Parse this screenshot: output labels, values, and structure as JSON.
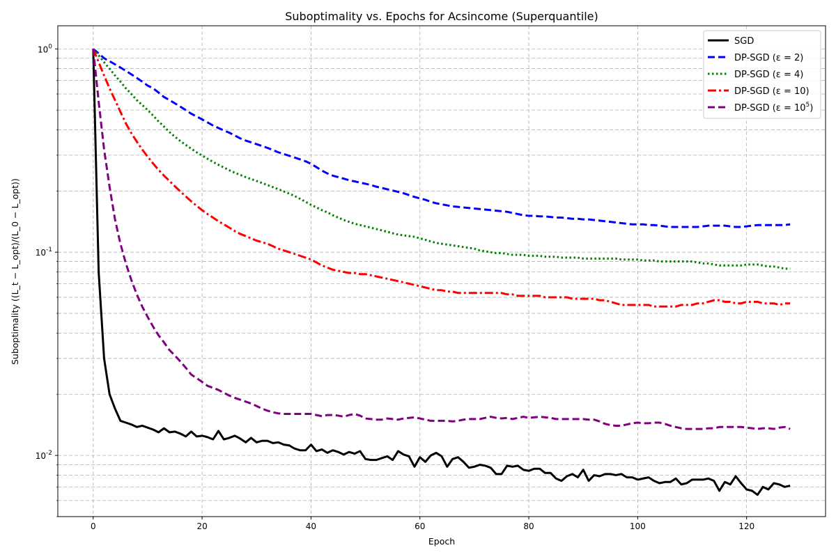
{
  "chart_data": {
    "type": "line",
    "title": "Suboptimality vs. Epochs for Acsincome (Superquantile)",
    "xlabel": "Epoch",
    "ylabel": "Suboptimality ((L_t − L_opt)/(L_0 − L_opt))",
    "xlim": [
      -6.5,
      134.5
    ],
    "ylim": [
      0.005,
      1.3
    ],
    "yscale": "log",
    "grid": true,
    "legend_position": "top-right",
    "x_ticks": [
      0,
      20,
      40,
      60,
      80,
      100,
      120
    ],
    "x_tick_labels": [
      "0",
      "20",
      "40",
      "60",
      "80",
      "100",
      "120"
    ],
    "y_ticks": [
      0.01,
      0.1,
      1
    ],
    "y_tick_labels": [
      "10^-2",
      "10^-1",
      "10^0"
    ],
    "x": [
      0,
      1,
      2,
      3,
      4,
      5,
      6,
      7,
      8,
      9,
      10,
      11,
      12,
      13,
      14,
      15,
      16,
      17,
      18,
      19,
      20,
      21,
      22,
      23,
      24,
      25,
      26,
      27,
      28,
      29,
      30,
      31,
      32,
      33,
      34,
      35,
      36,
      37,
      38,
      39,
      40,
      41,
      42,
      43,
      44,
      45,
      46,
      47,
      48,
      49,
      50,
      51,
      52,
      53,
      54,
      55,
      56,
      57,
      58,
      59,
      60,
      61,
      62,
      63,
      64,
      65,
      66,
      67,
      68,
      69,
      70,
      71,
      72,
      73,
      74,
      75,
      76,
      77,
      78,
      79,
      80,
      81,
      82,
      83,
      84,
      85,
      86,
      87,
      88,
      89,
      90,
      91,
      92,
      93,
      94,
      95,
      96,
      97,
      98,
      99,
      100,
      101,
      102,
      103,
      104,
      105,
      106,
      107,
      108,
      109,
      110,
      111,
      112,
      113,
      114,
      115,
      116,
      117,
      118,
      119,
      120,
      121,
      122,
      123,
      124,
      125,
      126,
      127,
      128
    ],
    "series": [
      {
        "name": "SGD",
        "color": "#000000",
        "style": "solid",
        "values": [
          1.0,
          0.08,
          0.03,
          0.02,
          0.017,
          0.0148,
          0.0145,
          0.0142,
          0.0138,
          0.014,
          0.0137,
          0.0134,
          0.013,
          0.0136,
          0.013,
          0.0131,
          0.0128,
          0.0124,
          0.0131,
          0.0124,
          0.0125,
          0.0123,
          0.012,
          0.0132,
          0.012,
          0.0122,
          0.0125,
          0.0121,
          0.0116,
          0.0122,
          0.0116,
          0.0118,
          0.0118,
          0.0115,
          0.0116,
          0.0113,
          0.0112,
          0.0108,
          0.0106,
          0.0106,
          0.0113,
          0.0105,
          0.0107,
          0.0103,
          0.0106,
          0.0104,
          0.0101,
          0.0104,
          0.0102,
          0.0105,
          0.0096,
          0.0095,
          0.0095,
          0.0097,
          0.0099,
          0.0095,
          0.0105,
          0.0101,
          0.0099,
          0.0088,
          0.0098,
          0.0093,
          0.01,
          0.0103,
          0.0099,
          0.0088,
          0.0096,
          0.0098,
          0.0093,
          0.0087,
          0.0088,
          0.009,
          0.0089,
          0.0087,
          0.0081,
          0.0081,
          0.0089,
          0.0088,
          0.0089,
          0.0085,
          0.0084,
          0.0086,
          0.0086,
          0.0082,
          0.0082,
          0.0077,
          0.0075,
          0.0079,
          0.0081,
          0.0078,
          0.0085,
          0.0075,
          0.008,
          0.0079,
          0.0081,
          0.0081,
          0.008,
          0.0081,
          0.0078,
          0.0078,
          0.0076,
          0.0077,
          0.0078,
          0.0075,
          0.0073,
          0.0074,
          0.0074,
          0.0077,
          0.0072,
          0.0073,
          0.0076,
          0.0076,
          0.0076,
          0.0077,
          0.0075,
          0.0067,
          0.0074,
          0.0072,
          0.0079,
          0.0073,
          0.0068,
          0.0067,
          0.0064,
          0.007,
          0.0068,
          0.0073,
          0.0072,
          0.007,
          0.0071
        ]
      },
      {
        "name": "DP-SGD (ε = 2)",
        "color": "#0000ff",
        "style": "dashed",
        "values": [
          1.0,
          0.95,
          0.9,
          0.87,
          0.84,
          0.81,
          0.78,
          0.75,
          0.72,
          0.69,
          0.66,
          0.64,
          0.61,
          0.58,
          0.56,
          0.54,
          0.52,
          0.5,
          0.48,
          0.465,
          0.45,
          0.435,
          0.42,
          0.408,
          0.397,
          0.387,
          0.375,
          0.363,
          0.354,
          0.347,
          0.34,
          0.333,
          0.326,
          0.318,
          0.31,
          0.304,
          0.298,
          0.292,
          0.286,
          0.28,
          0.272,
          0.262,
          0.252,
          0.244,
          0.238,
          0.234,
          0.23,
          0.226,
          0.223,
          0.22,
          0.217,
          0.214,
          0.21,
          0.207,
          0.204,
          0.201,
          0.198,
          0.195,
          0.191,
          0.187,
          0.184,
          0.181,
          0.177,
          0.174,
          0.172,
          0.17,
          0.168,
          0.167,
          0.166,
          0.165,
          0.164,
          0.163,
          0.162,
          0.161,
          0.16,
          0.159,
          0.158,
          0.156,
          0.154,
          0.152,
          0.151,
          0.151,
          0.15,
          0.15,
          0.149,
          0.148,
          0.148,
          0.147,
          0.146,
          0.146,
          0.145,
          0.145,
          0.144,
          0.143,
          0.142,
          0.141,
          0.14,
          0.139,
          0.138,
          0.137,
          0.137,
          0.137,
          0.136,
          0.136,
          0.135,
          0.134,
          0.133,
          0.133,
          0.133,
          0.133,
          0.133,
          0.133,
          0.134,
          0.135,
          0.135,
          0.135,
          0.135,
          0.134,
          0.133,
          0.133,
          0.134,
          0.135,
          0.136,
          0.136,
          0.136,
          0.136,
          0.136,
          0.136,
          0.137
        ]
      },
      {
        "name": "DP-SGD (ε = 4)",
        "color": "#008000",
        "style": "dotted",
        "values": [
          1.0,
          0.93,
          0.86,
          0.8,
          0.74,
          0.69,
          0.64,
          0.6,
          0.56,
          0.53,
          0.5,
          0.47,
          0.44,
          0.415,
          0.39,
          0.37,
          0.352,
          0.337,
          0.323,
          0.31,
          0.299,
          0.288,
          0.278,
          0.269,
          0.261,
          0.253,
          0.246,
          0.24,
          0.234,
          0.229,
          0.224,
          0.219,
          0.214,
          0.209,
          0.204,
          0.199,
          0.194,
          0.189,
          0.183,
          0.177,
          0.171,
          0.166,
          0.161,
          0.157,
          0.152,
          0.148,
          0.144,
          0.141,
          0.138,
          0.136,
          0.134,
          0.132,
          0.13,
          0.128,
          0.126,
          0.124,
          0.122,
          0.121,
          0.12,
          0.119,
          0.117,
          0.115,
          0.113,
          0.111,
          0.11,
          0.109,
          0.108,
          0.107,
          0.106,
          0.105,
          0.104,
          0.102,
          0.101,
          0.1,
          0.099,
          0.099,
          0.098,
          0.097,
          0.097,
          0.097,
          0.096,
          0.096,
          0.096,
          0.095,
          0.095,
          0.095,
          0.094,
          0.094,
          0.094,
          0.094,
          0.093,
          0.093,
          0.093,
          0.093,
          0.093,
          0.093,
          0.093,
          0.092,
          0.092,
          0.092,
          0.092,
          0.091,
          0.091,
          0.091,
          0.09,
          0.09,
          0.09,
          0.09,
          0.09,
          0.09,
          0.09,
          0.089,
          0.088,
          0.088,
          0.087,
          0.086,
          0.086,
          0.086,
          0.086,
          0.086,
          0.087,
          0.087,
          0.087,
          0.086,
          0.085,
          0.085,
          0.084,
          0.083,
          0.083
        ]
      },
      {
        "name": "DP-SGD (ε = 10)",
        "color": "#ff0000",
        "style": "dashdot",
        "values": [
          1.0,
          0.86,
          0.74,
          0.64,
          0.56,
          0.49,
          0.43,
          0.385,
          0.35,
          0.32,
          0.295,
          0.273,
          0.254,
          0.238,
          0.224,
          0.211,
          0.199,
          0.188,
          0.178,
          0.169,
          0.161,
          0.154,
          0.148,
          0.142,
          0.137,
          0.132,
          0.127,
          0.123,
          0.12,
          0.117,
          0.114,
          0.112,
          0.11,
          0.107,
          0.104,
          0.102,
          0.1,
          0.098,
          0.096,
          0.094,
          0.092,
          0.089,
          0.086,
          0.084,
          0.082,
          0.081,
          0.08,
          0.079,
          0.079,
          0.078,
          0.078,
          0.077,
          0.076,
          0.075,
          0.074,
          0.073,
          0.072,
          0.071,
          0.07,
          0.069,
          0.068,
          0.067,
          0.066,
          0.065,
          0.065,
          0.064,
          0.064,
          0.063,
          0.063,
          0.063,
          0.063,
          0.063,
          0.063,
          0.063,
          0.063,
          0.063,
          0.062,
          0.062,
          0.061,
          0.061,
          0.061,
          0.061,
          0.061,
          0.06,
          0.06,
          0.06,
          0.06,
          0.06,
          0.059,
          0.059,
          0.059,
          0.059,
          0.059,
          0.058,
          0.058,
          0.057,
          0.056,
          0.055,
          0.055,
          0.055,
          0.055,
          0.055,
          0.055,
          0.054,
          0.054,
          0.054,
          0.054,
          0.054,
          0.055,
          0.055,
          0.055,
          0.056,
          0.056,
          0.057,
          0.058,
          0.058,
          0.057,
          0.057,
          0.056,
          0.056,
          0.057,
          0.057,
          0.057,
          0.056,
          0.056,
          0.056,
          0.055,
          0.056,
          0.056
        ]
      },
      {
        "name": "DP-SGD (ε = 10^5)",
        "color": "#800080",
        "style": "dashed",
        "values": [
          1.0,
          0.55,
          0.32,
          0.21,
          0.145,
          0.11,
          0.088,
          0.073,
          0.062,
          0.054,
          0.048,
          0.043,
          0.039,
          0.036,
          0.033,
          0.031,
          0.029,
          0.027,
          0.025,
          0.024,
          0.023,
          0.022,
          0.0215,
          0.021,
          0.0203,
          0.0197,
          0.0192,
          0.0188,
          0.0184,
          0.018,
          0.0175,
          0.017,
          0.0166,
          0.0163,
          0.0161,
          0.016,
          0.016,
          0.016,
          0.016,
          0.016,
          0.016,
          0.0158,
          0.0156,
          0.0158,
          0.0158,
          0.0157,
          0.0155,
          0.0158,
          0.016,
          0.0157,
          0.0152,
          0.0151,
          0.015,
          0.015,
          0.0152,
          0.0151,
          0.015,
          0.0152,
          0.0153,
          0.0154,
          0.0152,
          0.015,
          0.0148,
          0.0148,
          0.0148,
          0.0148,
          0.0147,
          0.0148,
          0.015,
          0.0151,
          0.0151,
          0.0151,
          0.0153,
          0.0155,
          0.0153,
          0.0152,
          0.0153,
          0.0151,
          0.0153,
          0.0155,
          0.0153,
          0.0154,
          0.0155,
          0.0154,
          0.0153,
          0.0151,
          0.0151,
          0.0151,
          0.0151,
          0.0151,
          0.0151,
          0.015,
          0.015,
          0.0147,
          0.0143,
          0.0141,
          0.014,
          0.014,
          0.0142,
          0.0144,
          0.0145,
          0.0144,
          0.0144,
          0.0145,
          0.0145,
          0.0143,
          0.014,
          0.0138,
          0.0136,
          0.0135,
          0.0135,
          0.0135,
          0.0135,
          0.0136,
          0.0136,
          0.0138,
          0.0138,
          0.0138,
          0.0138,
          0.0138,
          0.0137,
          0.0136,
          0.0135,
          0.0136,
          0.0136,
          0.0135,
          0.0137,
          0.0138,
          0.0135
        ]
      }
    ]
  }
}
